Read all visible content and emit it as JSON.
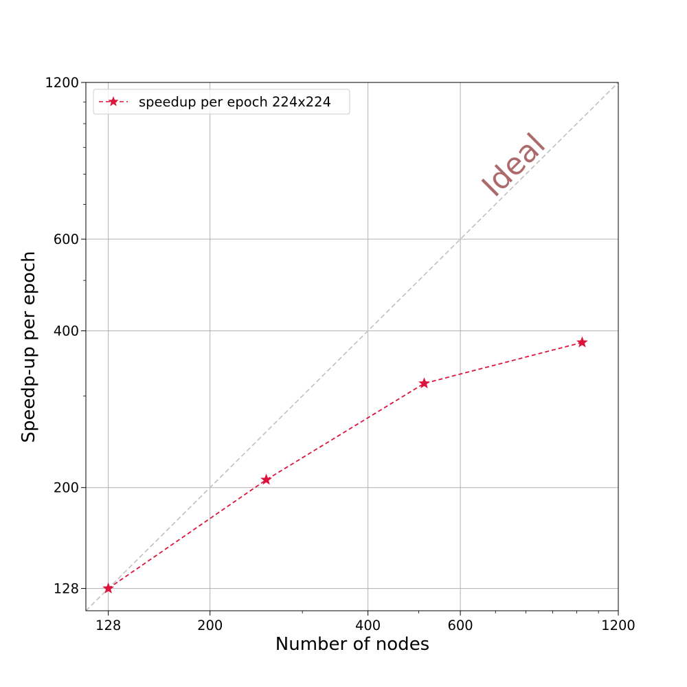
{
  "chart_data": {
    "type": "line",
    "scale": {
      "x": "log",
      "y": "log"
    },
    "xlabel": "Number of nodes",
    "ylabel": "Speedp-up per epoch",
    "xlim": [
      116,
      1200
    ],
    "ylim": [
      116,
      1200
    ],
    "x_ticks": [
      128,
      200,
      400,
      600,
      1200
    ],
    "y_ticks": [
      128,
      200,
      400,
      600,
      1200
    ],
    "x_minor_ticks": [
      300,
      500,
      700,
      800,
      900,
      1000,
      1100
    ],
    "y_minor_ticks": [
      300,
      500,
      700,
      800,
      900,
      1000,
      1100
    ],
    "grid": true,
    "legend_position": "top-left",
    "ideal": {
      "label": "Ideal",
      "color": "#bfbfbf",
      "points": [
        [
          116,
          116
        ],
        [
          1200,
          1200
        ]
      ]
    },
    "series": [
      {
        "name": "speedup per epoch 224x224",
        "color": "#dc143c",
        "line_style": "dashed",
        "marker": "star",
        "x": [
          128,
          256,
          512,
          1024
        ],
        "y": [
          128,
          207,
          317,
          380
        ]
      }
    ]
  }
}
